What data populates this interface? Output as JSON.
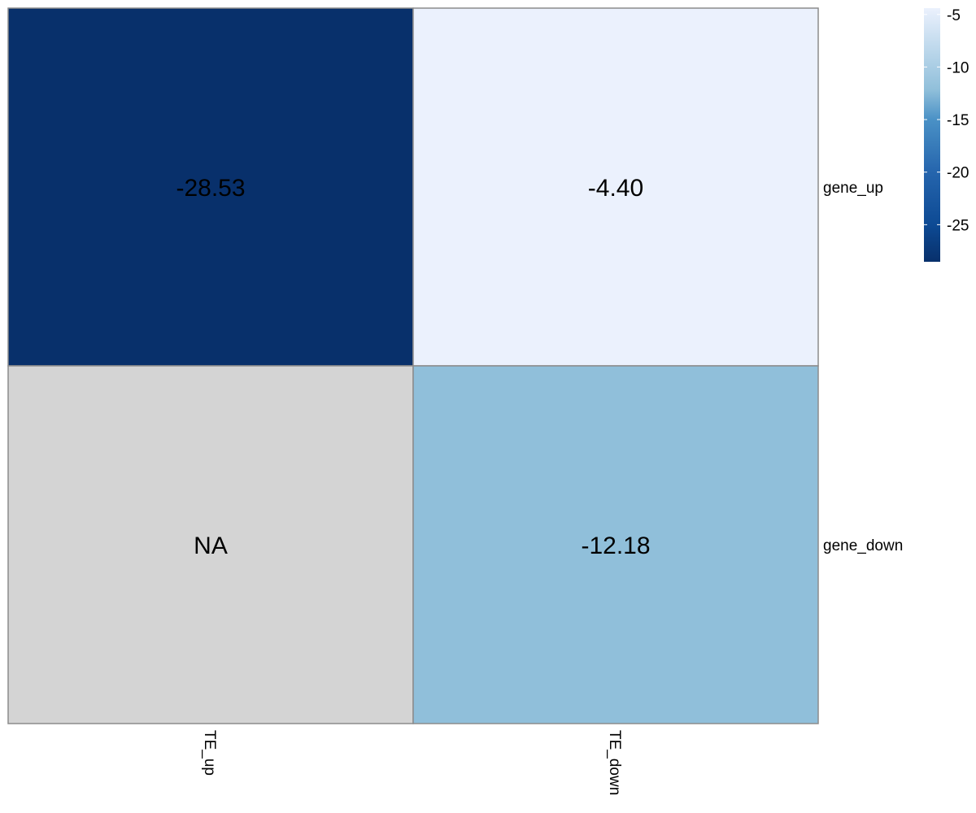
{
  "chart_data": {
    "type": "heatmap",
    "title": "",
    "rows": [
      "gene_up",
      "gene_down"
    ],
    "columns": [
      "TE_up",
      "TE_down"
    ],
    "values": [
      [
        -28.53,
        -4.4
      ],
      [
        null,
        -12.18
      ]
    ],
    "cell_labels": [
      [
        "-28.53",
        "-4.40"
      ],
      [
        "NA",
        "-12.18"
      ]
    ],
    "na_color": "#d4d4d4",
    "color_scale": {
      "min": -28.53,
      "max": -4.4,
      "low_color": "#08306b",
      "high_color": "#ebf1fd",
      "stops": [
        {
          "value": -28.53,
          "color": "#08306b"
        },
        {
          "value": -25,
          "color": "#0d4a94"
        },
        {
          "value": -20,
          "color": "#2565ad"
        },
        {
          "value": -15,
          "color": "#4a91c6"
        },
        {
          "value": -12.18,
          "color": "#90bfda"
        },
        {
          "value": -10,
          "color": "#a9cde4"
        },
        {
          "value": -4.4,
          "color": "#ebf1fd"
        }
      ]
    },
    "legend": {
      "position": "top-right",
      "ticks": [
        -5,
        -10,
        -15,
        -20,
        -25
      ],
      "tick_labels": [
        "-5",
        "-10",
        "-15",
        "-20",
        "-25"
      ]
    }
  }
}
